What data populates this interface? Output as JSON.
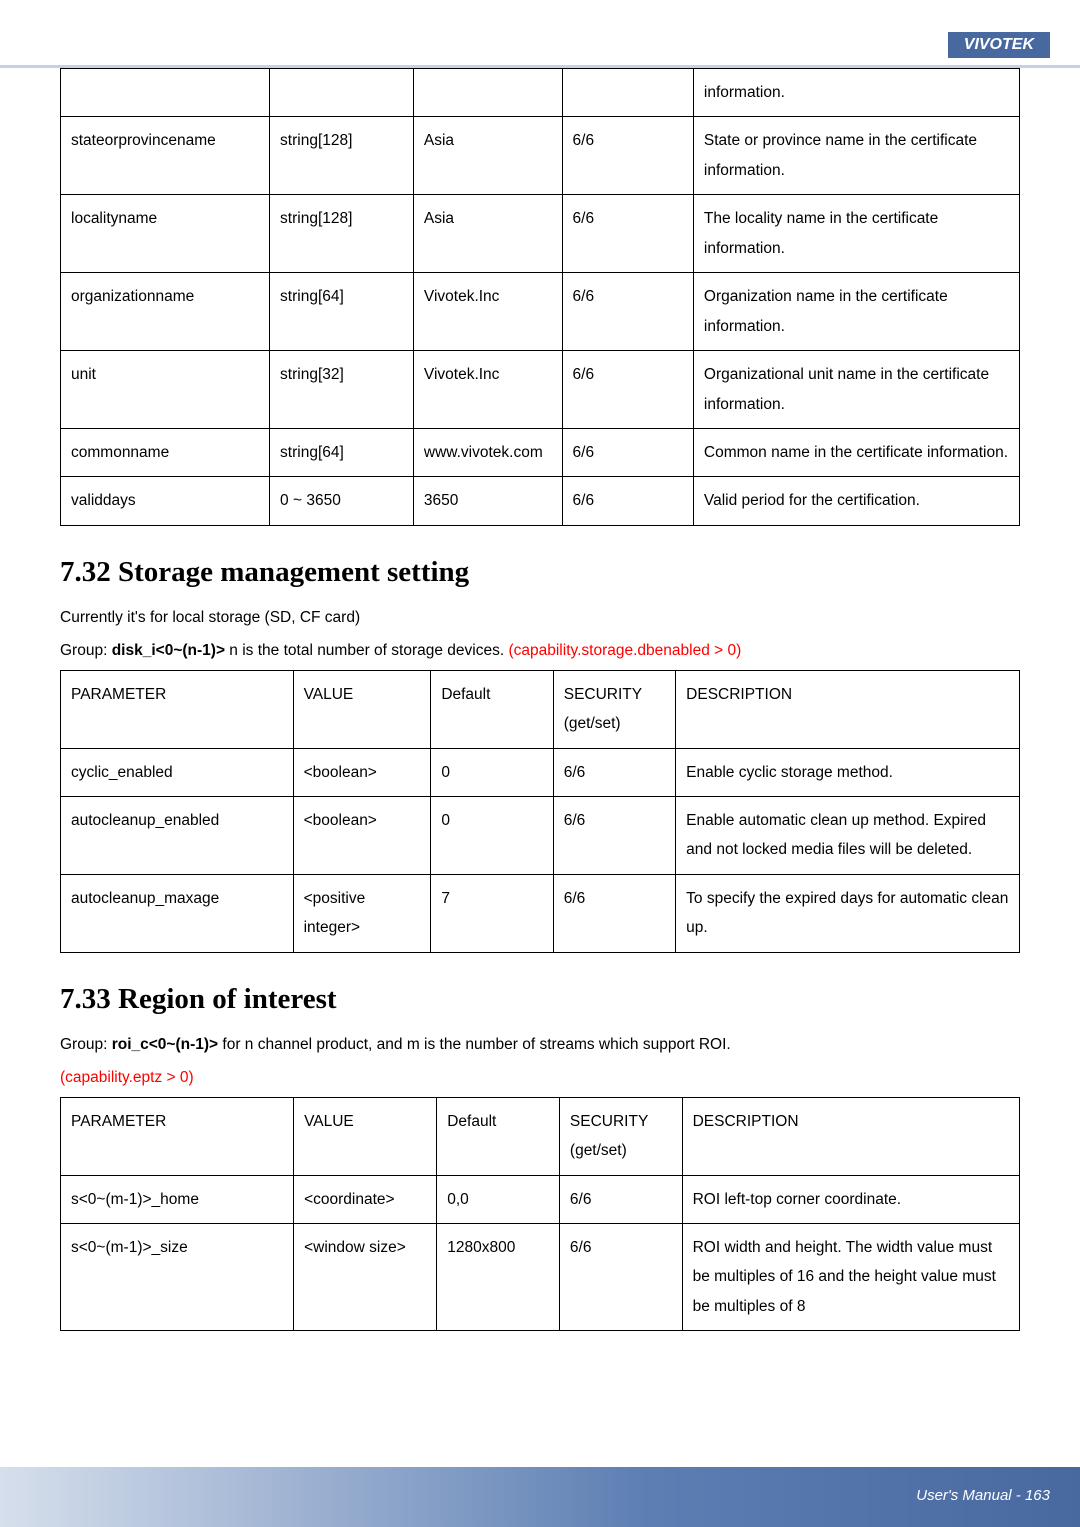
{
  "header": {
    "brand": "VIVOTEK"
  },
  "table1": {
    "rows": [
      {
        "c1": "",
        "c2": "",
        "c3": "",
        "c4": "",
        "c5": "information."
      },
      {
        "c1": "stateorprovincename",
        "c2": "string[128]",
        "c3": "Asia",
        "c4": "6/6",
        "c5": "State or province name in the certificate information."
      },
      {
        "c1": "localityname",
        "c2": "string[128]",
        "c3": "Asia",
        "c4": "6/6",
        "c5": "The locality name in the certificate information."
      },
      {
        "c1": "organizationname",
        "c2": "string[64]",
        "c3": "Vivotek.Inc",
        "c4": "6/6",
        "c5": "Organization name in the certificate information."
      },
      {
        "c1": "unit",
        "c2": "string[32]",
        "c3": "Vivotek.Inc",
        "c4": "6/6",
        "c5": "Organizational unit name in the certificate information."
      },
      {
        "c1": "commonname",
        "c2": "string[64]",
        "c3": "www.vivotek.com",
        "c4": "6/6",
        "c5": "Common name in the certificate information."
      },
      {
        "c1": "validdays",
        "c2": "0 ~ 3650",
        "c3": "3650",
        "c4": "6/6",
        "c5": "Valid period for the certification."
      }
    ]
  },
  "section732": {
    "heading": "7.32 Storage management setting",
    "line1": "Currently it's for local storage (SD, CF card)",
    "group_prefix": "Group: ",
    "group_bold": "disk_i<0~(n-1)>",
    "group_mid": " n is the total number of storage devices. ",
    "group_red": "(capability.storage.dbenabled > 0)"
  },
  "table2": {
    "head": {
      "c1": "PARAMETER",
      "c2": "VALUE",
      "c3": "Default",
      "c4": "SECURITY (get/set)",
      "c5": "DESCRIPTION"
    },
    "rows": [
      {
        "c1": "cyclic_enabled",
        "c2": "<boolean>",
        "c3": "0",
        "c4": "6/6",
        "c5": "Enable cyclic storage method."
      },
      {
        "c1": "autocleanup_enabled",
        "c2": "<boolean>",
        "c3": "0",
        "c4": "6/6",
        "c5": "Enable automatic clean up method. Expired and not locked media files will be deleted."
      },
      {
        "c1": "autocleanup_maxage",
        "c2": "<positive integer>",
        "c3": "7",
        "c4": "6/6",
        "c5": "To specify the expired days for automatic clean up."
      }
    ]
  },
  "section733": {
    "heading": "7.33 Region of interest",
    "group_prefix": "Group: ",
    "group_bold": "roi_c<0~(n-1)>",
    "group_mid": " for n channel product, and m is the number of streams which support ROI.",
    "group_red": "(capability.eptz > 0)"
  },
  "table3": {
    "head": {
      "c1": "PARAMETER",
      "c2": "VALUE",
      "c3": "Default",
      "c4": "SECURITY (get/set)",
      "c5": "DESCRIPTION"
    },
    "rows": [
      {
        "c1": "s<0~(m-1)>_home",
        "c2": "<coordinate>",
        "c3": "0,0",
        "c4": "6/6",
        "c5": "ROI left-top corner coordinate."
      },
      {
        "c1": "s<0~(m-1)>_size",
        "c2": "<window size>",
        "c3": "1280x800",
        "c4": "6/6",
        "c5": "ROI width and height. The width value must be multiples of 16 and the height value must be multiples of 8"
      }
    ]
  },
  "footer": {
    "text": "User's Manual - 163"
  }
}
